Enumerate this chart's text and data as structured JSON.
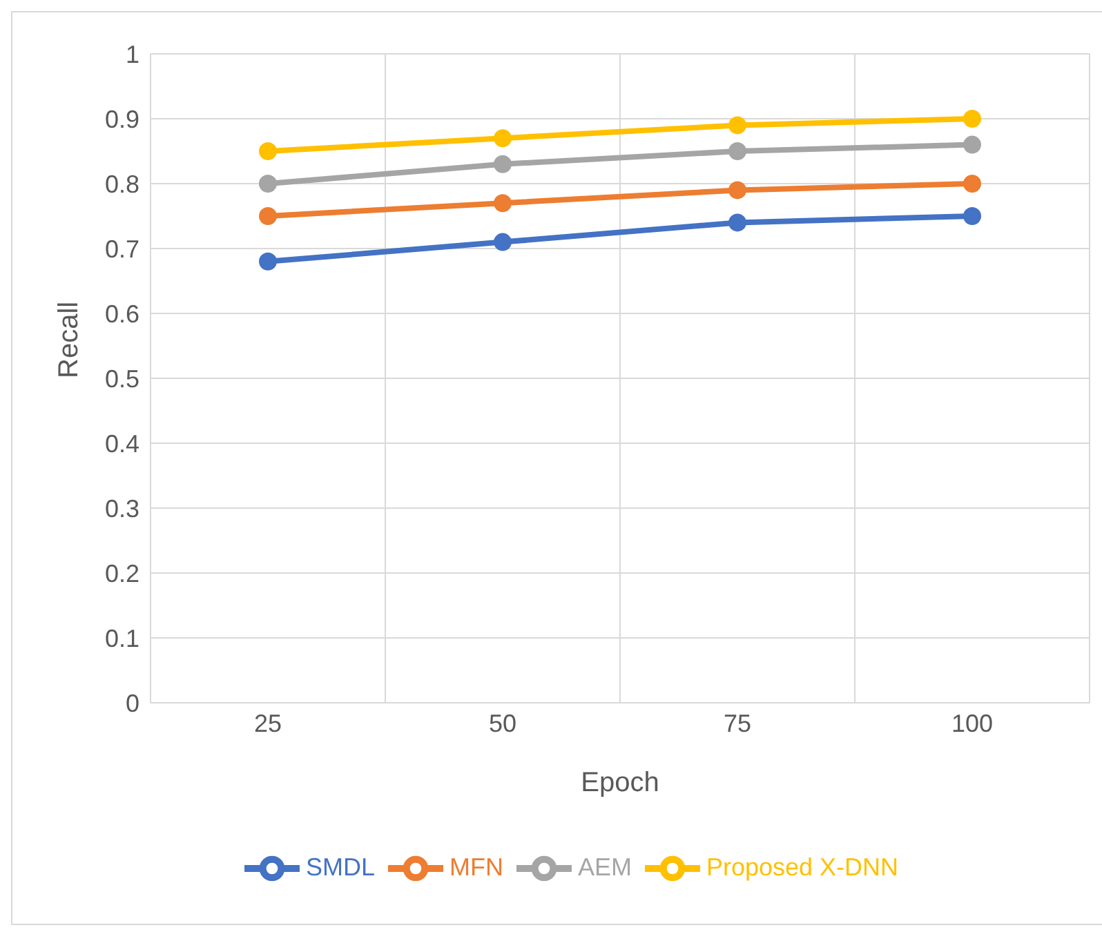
{
  "chart_data": {
    "type": "line",
    "xlabel": "Epoch",
    "ylabel": "Recall",
    "categories": [
      "25",
      "50",
      "75",
      "100"
    ],
    "series": [
      {
        "name": "SMDL",
        "color": "#4472c4",
        "values": [
          0.68,
          0.71,
          0.74,
          0.75
        ]
      },
      {
        "name": "MFN",
        "color": "#ed7d31",
        "values": [
          0.75,
          0.77,
          0.79,
          0.8
        ]
      },
      {
        "name": "AEM",
        "color": "#a5a5a5",
        "values": [
          0.8,
          0.83,
          0.85,
          0.86
        ]
      },
      {
        "name": "Proposed X-DNN",
        "color": "#ffc000",
        "values": [
          0.85,
          0.87,
          0.89,
          0.9
        ]
      }
    ],
    "ylim": [
      0,
      1
    ],
    "yticks": [
      0,
      0.1,
      0.2,
      0.3,
      0.4,
      0.5,
      0.6,
      0.7,
      0.8,
      0.9,
      1
    ],
    "grid": true,
    "legend": "bottom",
    "marker": "circle",
    "line_style": "solid"
  }
}
